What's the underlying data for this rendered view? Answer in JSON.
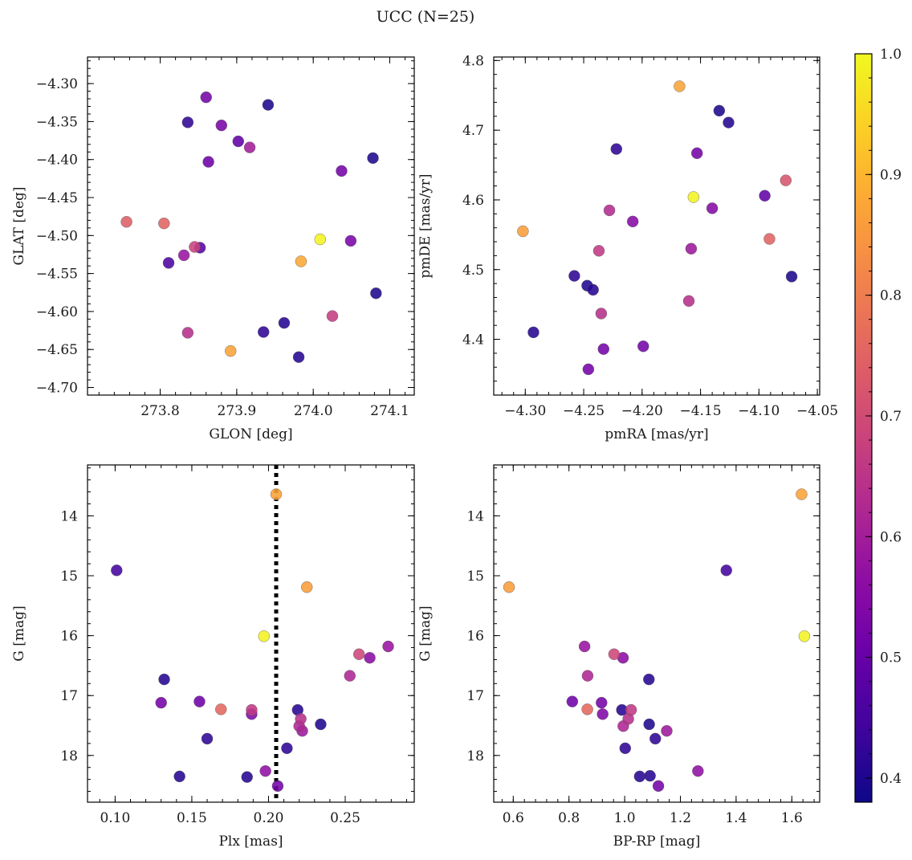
{
  "figure": {
    "title": "UCC (N=25)"
  },
  "colorbar": {
    "range": [
      0.38,
      1.0
    ],
    "ticks": [
      0.4,
      0.5,
      0.6,
      0.7,
      0.8,
      0.9,
      1.0
    ],
    "tick_labels": [
      "0.4",
      "0.5",
      "0.6",
      "0.7",
      "0.8",
      "0.9",
      "1.0"
    ],
    "colormap": "plasma"
  },
  "chart_data": [
    {
      "type": "scatter",
      "panel": "top-left",
      "xlabel": "GLON [deg]",
      "ylabel": "GLAT [deg]",
      "xlim": [
        273.705,
        274.132
      ],
      "ylim": [
        -4.71,
        -4.265
      ],
      "y_inverted": false,
      "xticks": [
        273.8,
        273.9,
        274.0,
        274.1
      ],
      "xtick_labels": [
        "273.8",
        "273.9",
        "274.0",
        "274.1"
      ],
      "yticks": [
        -4.3,
        -4.35,
        -4.4,
        -4.45,
        -4.5,
        -4.55,
        -4.6,
        -4.65,
        -4.7
      ],
      "ytick_labels": [
        "−4.30",
        "−4.35",
        "−4.40",
        "−4.45",
        "−4.50",
        "−4.55",
        "−4.60",
        "−4.65",
        "−4.70"
      ],
      "points": [
        {
          "x": 273.86,
          "y": -4.318,
          "c": 0.52
        },
        {
          "x": 273.941,
          "y": -4.328,
          "c": 0.4
        },
        {
          "x": 273.836,
          "y": -4.351,
          "c": 0.42
        },
        {
          "x": 273.88,
          "y": -4.355,
          "c": 0.53
        },
        {
          "x": 273.902,
          "y": -4.376,
          "c": 0.49
        },
        {
          "x": 273.917,
          "y": -4.384,
          "c": 0.6
        },
        {
          "x": 273.863,
          "y": -4.403,
          "c": 0.51
        },
        {
          "x": 274.037,
          "y": -4.415,
          "c": 0.52
        },
        {
          "x": 274.078,
          "y": -4.398,
          "c": 0.4
        },
        {
          "x": 273.756,
          "y": -4.482,
          "c": 0.74
        },
        {
          "x": 273.805,
          "y": -4.484,
          "c": 0.75
        },
        {
          "x": 274.009,
          "y": -4.505,
          "c": 0.99
        },
        {
          "x": 273.984,
          "y": -4.534,
          "c": 0.88
        },
        {
          "x": 274.049,
          "y": -4.507,
          "c": 0.53
        },
        {
          "x": 273.845,
          "y": -4.515,
          "c": 0.68
        },
        {
          "x": 273.852,
          "y": -4.516,
          "c": 0.48
        },
        {
          "x": 273.831,
          "y": -4.526,
          "c": 0.58
        },
        {
          "x": 273.811,
          "y": -4.536,
          "c": 0.46
        },
        {
          "x": 274.082,
          "y": -4.576,
          "c": 0.4
        },
        {
          "x": 274.025,
          "y": -4.606,
          "c": 0.67
        },
        {
          "x": 273.962,
          "y": -4.615,
          "c": 0.41
        },
        {
          "x": 273.836,
          "y": -4.628,
          "c": 0.64
        },
        {
          "x": 273.935,
          "y": -4.627,
          "c": 0.42
        },
        {
          "x": 273.892,
          "y": -4.652,
          "c": 0.87
        },
        {
          "x": 273.981,
          "y": -4.66,
          "c": 0.41
        }
      ]
    },
    {
      "type": "scatter",
      "panel": "top-right",
      "xlabel": "pmRA [mas/yr]",
      "ylabel": "pmDE [mas/yr]",
      "xlim": [
        -4.327,
        -4.048
      ],
      "ylim": [
        4.32,
        4.805
      ],
      "y_inverted": false,
      "xticks": [
        -4.3,
        -4.25,
        -4.2,
        -4.15,
        -4.1,
        -4.05
      ],
      "xtick_labels": [
        "−4.30",
        "−4.25",
        "−4.20",
        "−4.15",
        "−4.10",
        "−4.05"
      ],
      "yticks": [
        4.4,
        4.5,
        4.6,
        4.7,
        4.8
      ],
      "ytick_labels": [
        "4.4",
        "4.5",
        "4.6",
        "4.7",
        "4.8"
      ],
      "points": [
        {
          "x": -4.168,
          "y": 4.763,
          "c": 0.87
        },
        {
          "x": -4.134,
          "y": 4.728,
          "c": 0.4
        },
        {
          "x": -4.126,
          "y": 4.711,
          "c": 0.41
        },
        {
          "x": -4.222,
          "y": 4.673,
          "c": 0.42
        },
        {
          "x": -4.153,
          "y": 4.667,
          "c": 0.52
        },
        {
          "x": -4.156,
          "y": 4.604,
          "c": 0.99
        },
        {
          "x": -4.095,
          "y": 4.606,
          "c": 0.49
        },
        {
          "x": -4.077,
          "y": 4.628,
          "c": 0.72
        },
        {
          "x": -4.14,
          "y": 4.588,
          "c": 0.55
        },
        {
          "x": -4.228,
          "y": 4.585,
          "c": 0.63
        },
        {
          "x": -4.208,
          "y": 4.569,
          "c": 0.55
        },
        {
          "x": -4.302,
          "y": 4.555,
          "c": 0.86
        },
        {
          "x": -4.091,
          "y": 4.544,
          "c": 0.75
        },
        {
          "x": -4.158,
          "y": 4.53,
          "c": 0.59
        },
        {
          "x": -4.237,
          "y": 4.527,
          "c": 0.66
        },
        {
          "x": -4.258,
          "y": 4.491,
          "c": 0.42
        },
        {
          "x": -4.072,
          "y": 4.49,
          "c": 0.4
        },
        {
          "x": -4.247,
          "y": 4.477,
          "c": 0.4
        },
        {
          "x": -4.242,
          "y": 4.471,
          "c": 0.41
        },
        {
          "x": -4.16,
          "y": 4.455,
          "c": 0.64
        },
        {
          "x": -4.235,
          "y": 4.437,
          "c": 0.64
        },
        {
          "x": -4.293,
          "y": 4.41,
          "c": 0.41
        },
        {
          "x": -4.233,
          "y": 4.386,
          "c": 0.52
        },
        {
          "x": -4.199,
          "y": 4.39,
          "c": 0.52
        },
        {
          "x": -4.246,
          "y": 4.357,
          "c": 0.52
        }
      ]
    },
    {
      "type": "scatter",
      "panel": "bottom-left",
      "xlabel": "Plx [mas]",
      "ylabel": "G [mag]",
      "xlim": [
        0.082,
        0.295
      ],
      "ylim": [
        18.78,
        13.15
      ],
      "y_inverted": true,
      "xticks": [
        0.1,
        0.15,
        0.2,
        0.25
      ],
      "xtick_labels": [
        "0.10",
        "0.15",
        "0.20",
        "0.25"
      ],
      "yticks": [
        14,
        15,
        16,
        17,
        18
      ],
      "ytick_labels": [
        "14",
        "15",
        "16",
        "17",
        "18"
      ],
      "vline": {
        "x": 0.205,
        "style": "dotted",
        "color": "#000000"
      },
      "points": [
        {
          "x": 0.205,
          "y": 13.64,
          "c": 0.87
        },
        {
          "x": 0.101,
          "y": 14.91,
          "c": 0.45
        },
        {
          "x": 0.225,
          "y": 15.19,
          "c": 0.86
        },
        {
          "x": 0.197,
          "y": 16.01,
          "c": 0.99
        },
        {
          "x": 0.278,
          "y": 16.18,
          "c": 0.58
        },
        {
          "x": 0.259,
          "y": 16.31,
          "c": 0.69
        },
        {
          "x": 0.266,
          "y": 16.37,
          "c": 0.56
        },
        {
          "x": 0.253,
          "y": 16.67,
          "c": 0.62
        },
        {
          "x": 0.132,
          "y": 16.73,
          "c": 0.41
        },
        {
          "x": 0.13,
          "y": 17.12,
          "c": 0.52
        },
        {
          "x": 0.155,
          "y": 17.1,
          "c": 0.51
        },
        {
          "x": 0.169,
          "y": 17.23,
          "c": 0.76
        },
        {
          "x": 0.189,
          "y": 17.24,
          "c": 0.66
        },
        {
          "x": 0.189,
          "y": 17.31,
          "c": 0.54
        },
        {
          "x": 0.219,
          "y": 17.24,
          "c": 0.41
        },
        {
          "x": 0.221,
          "y": 17.39,
          "c": 0.64
        },
        {
          "x": 0.22,
          "y": 17.51,
          "c": 0.62
        },
        {
          "x": 0.222,
          "y": 17.59,
          "c": 0.59
        },
        {
          "x": 0.234,
          "y": 17.48,
          "c": 0.4
        },
        {
          "x": 0.16,
          "y": 17.72,
          "c": 0.42
        },
        {
          "x": 0.212,
          "y": 17.88,
          "c": 0.42
        },
        {
          "x": 0.142,
          "y": 18.35,
          "c": 0.41
        },
        {
          "x": 0.186,
          "y": 18.36,
          "c": 0.41
        },
        {
          "x": 0.198,
          "y": 18.26,
          "c": 0.57
        },
        {
          "x": 0.206,
          "y": 18.51,
          "c": 0.52
        }
      ]
    },
    {
      "type": "scatter",
      "panel": "bottom-right",
      "xlabel": "BP-RP [mag]",
      "ylabel": "G [mag]",
      "xlim": [
        0.53,
        1.7
      ],
      "ylim": [
        18.78,
        13.15
      ],
      "y_inverted": true,
      "xticks": [
        0.6,
        0.8,
        1.0,
        1.2,
        1.4,
        1.6
      ],
      "xtick_labels": [
        "0.6",
        "0.8",
        "1.0",
        "1.2",
        "1.4",
        "1.6"
      ],
      "yticks": [
        14,
        15,
        16,
        17,
        18
      ],
      "ytick_labels": [
        "14",
        "15",
        "16",
        "17",
        "18"
      ],
      "points": [
        {
          "x": 1.635,
          "y": 13.64,
          "c": 0.87
        },
        {
          "x": 1.365,
          "y": 14.91,
          "c": 0.45
        },
        {
          "x": 0.585,
          "y": 15.19,
          "c": 0.86
        },
        {
          "x": 1.645,
          "y": 16.01,
          "c": 0.99
        },
        {
          "x": 0.856,
          "y": 16.18,
          "c": 0.58
        },
        {
          "x": 0.962,
          "y": 16.31,
          "c": 0.69
        },
        {
          "x": 0.994,
          "y": 16.37,
          "c": 0.56
        },
        {
          "x": 0.867,
          "y": 16.67,
          "c": 0.62
        },
        {
          "x": 1.087,
          "y": 16.73,
          "c": 0.41
        },
        {
          "x": 0.812,
          "y": 17.1,
          "c": 0.51
        },
        {
          "x": 0.917,
          "y": 17.12,
          "c": 0.52
        },
        {
          "x": 0.866,
          "y": 17.23,
          "c": 0.76
        },
        {
          "x": 1.023,
          "y": 17.24,
          "c": 0.66
        },
        {
          "x": 0.99,
          "y": 17.24,
          "c": 0.41
        },
        {
          "x": 0.921,
          "y": 17.31,
          "c": 0.54
        },
        {
          "x": 1.013,
          "y": 17.39,
          "c": 0.64
        },
        {
          "x": 1.088,
          "y": 17.48,
          "c": 0.4
        },
        {
          "x": 0.995,
          "y": 17.51,
          "c": 0.62
        },
        {
          "x": 1.151,
          "y": 17.59,
          "c": 0.59
        },
        {
          "x": 1.11,
          "y": 17.72,
          "c": 0.42
        },
        {
          "x": 1.002,
          "y": 17.88,
          "c": 0.42
        },
        {
          "x": 1.263,
          "y": 18.26,
          "c": 0.57
        },
        {
          "x": 1.054,
          "y": 18.35,
          "c": 0.41
        },
        {
          "x": 1.091,
          "y": 18.34,
          "c": 0.41
        },
        {
          "x": 1.121,
          "y": 18.51,
          "c": 0.52
        }
      ]
    }
  ]
}
